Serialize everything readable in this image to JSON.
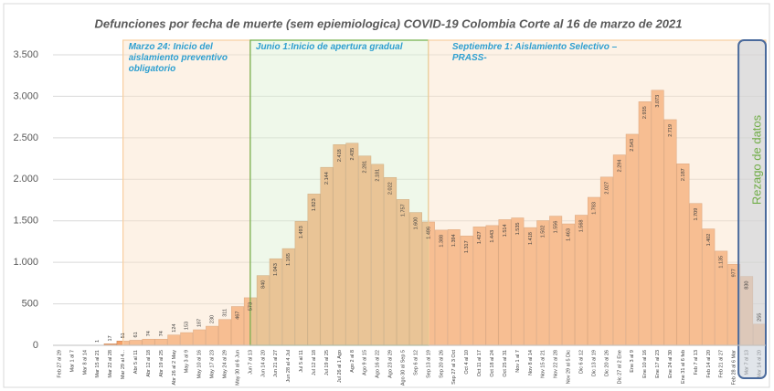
{
  "chart_data": {
    "type": "bar",
    "title": "Defunciones por fecha de muerte (sem epiemiologica) COVID-19 Colombia Corte al 16 de marzo  de 2021",
    "categories": [
      "Feb 27 al 29",
      "Mar 1 al 7",
      "Mar 8 al 14",
      "Mar 15 al 21",
      "Mar 22 al 28",
      "Mar 29 al 4...",
      "Abr 5 al 11",
      "Abr 12 al 18",
      "Abr 19 al 25",
      "Abr 26 al 2 May",
      "May 3 al 9",
      "May 10 al 16",
      "May 17 al 23",
      "May 24 al 29",
      "May 30 al 6 Jun",
      "Jun 7 al 13",
      "Jun 14 al 20",
      "Jun 21 al 27",
      "Jun 28 al 4 Jul",
      "Jul 5 al 11",
      "Jul 12 al 18",
      "Jul 19 al 25",
      "Jul 26 al 1 Ago",
      "Ago 2 al 8",
      "Ago 9 al 15",
      "Ago 16 al 22",
      "Ago 23 al 29",
      "Ago 30 al Sep 5",
      "Sep 6 al 12",
      "Sep 13 al 19",
      "Sep 20 al 26",
      "Sep 27 al 3 Oct",
      "Oct 4 al 10",
      "Oct 11 al 17",
      "Oct 18 al 24",
      "Oct 25 al 31",
      "Nov 1 al 7",
      "Nov 8 al 14",
      "Nov 15 al 21",
      "Nov 22 al 28",
      "Nov 29 al 5 Dic",
      "Dic 6 al 12",
      "Dic 13 al 19",
      "Dic 20 al 26",
      "Dic 27 al 2 Ene",
      "Ene 3 al 9",
      "Ene 10 al 16",
      "Ene 17 al 23",
      "Ene 24 al 30",
      "Ene 31 al 6 feb",
      "Feb 7 al 13",
      "Feb 14 al 20",
      "Feb 21 al 27",
      "Feb 28 al 6 Mar",
      "Mar 7 al 13",
      "Mar 14 al 20"
    ],
    "values": [
      null,
      null,
      null,
      1,
      17,
      51,
      61,
      74,
      74,
      124,
      153,
      187,
      230,
      311,
      467,
      573,
      840,
      1043,
      1165,
      1493,
      1823,
      2144,
      2418,
      2435,
      2281,
      2181,
      2022,
      1757,
      1600,
      1486,
      1388,
      1394,
      1317,
      1427,
      1443,
      1514,
      1535,
      1418,
      1502,
      1556,
      1463,
      1568,
      1783,
      2027,
      2294,
      2543,
      2935,
      3073,
      2719,
      2187,
      1709,
      1402,
      1135,
      977,
      830,
      255
    ],
    "value_labels": [
      null,
      null,
      null,
      "1",
      "17",
      "51",
      "61",
      "74",
      "74",
      "124",
      "153",
      "187",
      "230",
      "311",
      "467",
      "573",
      "840",
      "1.043",
      "1.165",
      "1.493",
      "1.823",
      "2.144",
      "2.418",
      "2.435",
      "2.281",
      "2.181",
      "2.022",
      "1.757",
      "1.600",
      "1.486",
      "1.388",
      "1.394",
      "1.317",
      "1.427",
      "1.443",
      "1.514",
      "1.535",
      "1.418",
      "1.502",
      "1.556",
      "1.463",
      "1.568",
      "1.783",
      "2.027",
      "2.294",
      "2.543",
      "2.935",
      "3.073",
      "2.719",
      "2.187",
      "1.709",
      "1.402",
      "1.135",
      "977",
      "830",
      "255"
    ],
    "color": "#f5a067",
    "ylim": [
      0,
      3500
    ],
    "yticks": [
      0,
      500,
      {
        "value": 1000,
        "label": "1.000"
      },
      {
        "value": 1500,
        "label": "1.500"
      },
      {
        "value": 2000,
        "label": "2.000"
      },
      {
        "value": 2500,
        "label": "2.500"
      },
      {
        "value": 3000,
        "label": "3.000"
      },
      {
        "value": 3500,
        "label": "3.500"
      }
    ],
    "grid": true,
    "annotations": [
      {
        "text": "Marzo 24: Inicio del aislamiento preventivo obligatorio",
        "start": "Mar 29 al 4...",
        "end": "Jun 7 al 13",
        "color": "#fbe2c8"
      },
      {
        "text": "Junio 1:Inicio de apertura gradual",
        "start": "Jun 7 al 13",
        "end": "Sep 13 al 19",
        "color": "#dcefd0"
      },
      {
        "text": "Septiembre 1: Aislamiento Selectivo – PRASS-",
        "start": "Sep 13 al 19",
        "end": "Mar 14 al 20",
        "color": "#fbe2c8"
      },
      {
        "text": "Rezago de datos",
        "start": "Mar 7 al 13",
        "end": "Mar 14 al 20",
        "color": "#c9cfd8"
      }
    ]
  }
}
